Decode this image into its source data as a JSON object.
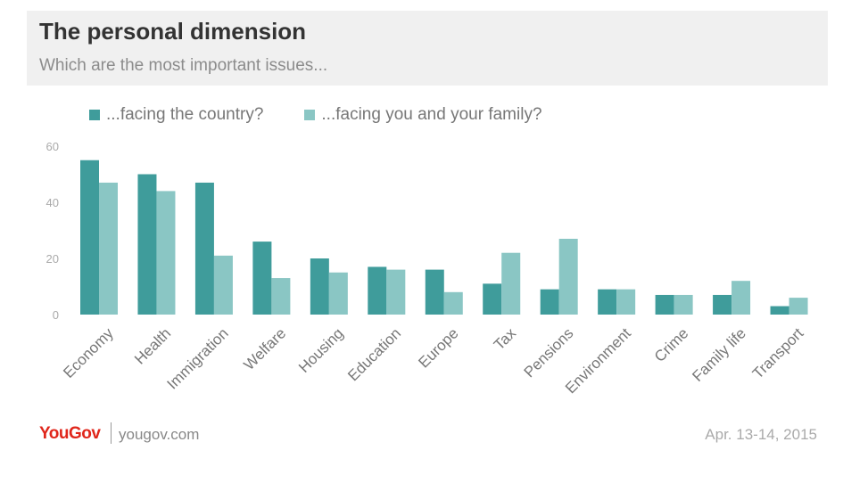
{
  "header": {
    "title": "The personal dimension",
    "subtitle": "Which are the most important issues..."
  },
  "footer": {
    "brand": "YouGov",
    "site": "yougov.com",
    "date": "Apr. 13-14, 2015"
  },
  "colors": {
    "country": "#3f9c9b",
    "family": "#8ac6c4",
    "axis_text": "#aaaaaa",
    "category_text": "#777777",
    "brand_red": "#e0261b"
  },
  "chart_data": {
    "type": "bar",
    "categories": [
      "Economy",
      "Health",
      "Immigration",
      "Welfare",
      "Housing",
      "Education",
      "Europe",
      "Tax",
      "Pensions",
      "Environment",
      "Crime",
      "Family life",
      "Transport"
    ],
    "series": [
      {
        "name": "...facing the country?",
        "values": [
          55,
          50,
          47,
          26,
          20,
          17,
          16,
          11,
          9,
          9,
          7,
          7,
          3
        ]
      },
      {
        "name": "...facing you and your family?",
        "values": [
          47,
          44,
          21,
          13,
          15,
          16,
          8,
          22,
          27,
          9,
          7,
          12,
          6
        ]
      }
    ],
    "yticks": [
      0,
      20,
      40,
      60
    ],
    "ylim": [
      0,
      60
    ],
    "grid": false,
    "legend": "top-left"
  }
}
